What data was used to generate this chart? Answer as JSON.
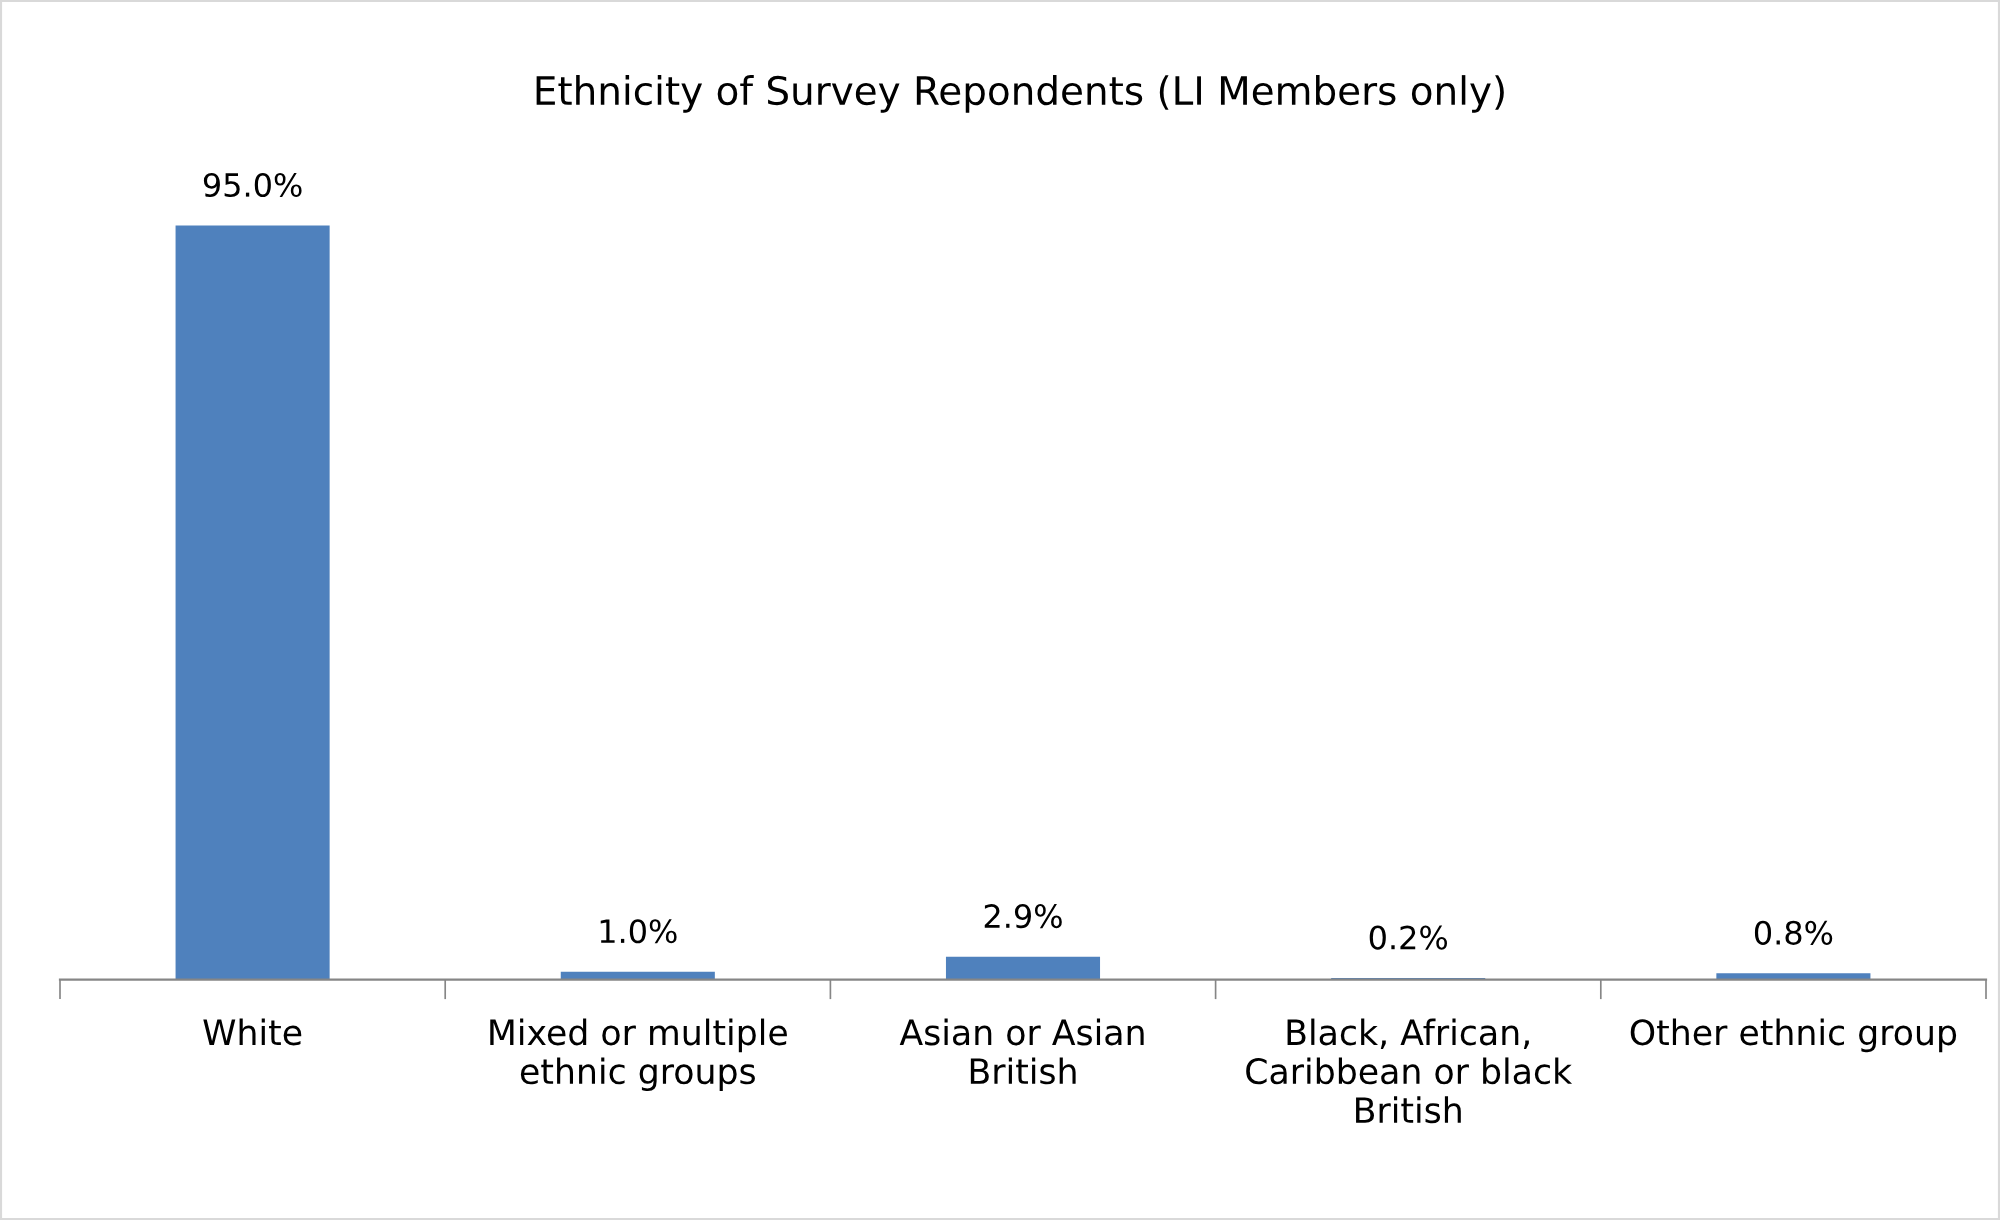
{
  "chart_data": {
    "type": "bar",
    "title": "Ethnicity of Survey Repondents (LI Members only)",
    "categories": [
      "White",
      "Mixed or multiple ethnic groups",
      "Asian or Asian British",
      "Black, African, Caribbean or black British",
      "Other ethnic group"
    ],
    "values": [
      95.0,
      1.0,
      2.9,
      0.2,
      0.8
    ],
    "value_labels": [
      "95.0%",
      "1.0%",
      "2.9%",
      "0.2%",
      "0.8%"
    ],
    "color": "#4f81bd"
  }
}
